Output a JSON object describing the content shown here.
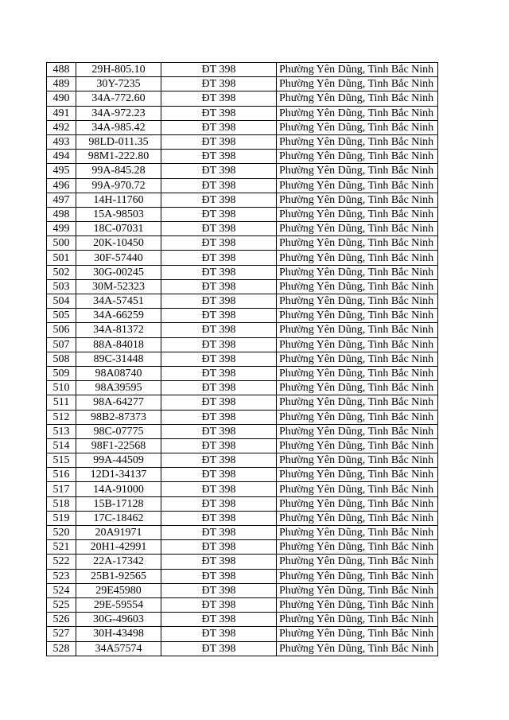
{
  "table": {
    "route": "ĐT 398",
    "location": "Phường Yên Dũng, Tinh Bắc Ninh",
    "rows": [
      [
        "488",
        "29H-805.10"
      ],
      [
        "489",
        "30Y-7235"
      ],
      [
        "490",
        "34A-772.60"
      ],
      [
        "491",
        "34A-972.23"
      ],
      [
        "492",
        "34A-985.42"
      ],
      [
        "493",
        "98LD-011.35"
      ],
      [
        "494",
        "98M1-222.80"
      ],
      [
        "495",
        "99A-845.28"
      ],
      [
        "496",
        "99A-970.72"
      ],
      [
        "497",
        "14H-11760"
      ],
      [
        "498",
        "15A-98503"
      ],
      [
        "499",
        "18C-07031"
      ],
      [
        "500",
        "20K-10450"
      ],
      [
        "501",
        "30F-57440"
      ],
      [
        "502",
        "30G-00245"
      ],
      [
        "503",
        "30M-52323"
      ],
      [
        "504",
        "34A-57451"
      ],
      [
        "505",
        "34A-66259"
      ],
      [
        "506",
        "34A-81372"
      ],
      [
        "507",
        "88A-84018"
      ],
      [
        "508",
        "89C-31448"
      ],
      [
        "509",
        "98A08740"
      ],
      [
        "510",
        "98A39595"
      ],
      [
        "511",
        "98A-64277"
      ],
      [
        "512",
        "98B2-87373"
      ],
      [
        "513",
        "98C-07775"
      ],
      [
        "514",
        "98F1-22568"
      ],
      [
        "515",
        "99A-44509"
      ],
      [
        "516",
        "12D1-34137"
      ],
      [
        "517",
        "14A-91000"
      ],
      [
        "518",
        "15B-17128"
      ],
      [
        "519",
        "17C-18462"
      ],
      [
        "520",
        "20A91971"
      ],
      [
        "521",
        "20H1-42991"
      ],
      [
        "522",
        "22A-17342"
      ],
      [
        "523",
        "25B1-92565"
      ],
      [
        "524",
        "29E45980"
      ],
      [
        "525",
        "29E-59554"
      ],
      [
        "526",
        "30G-49603"
      ],
      [
        "527",
        "30H-43498"
      ],
      [
        "528",
        "34A57574"
      ]
    ]
  }
}
